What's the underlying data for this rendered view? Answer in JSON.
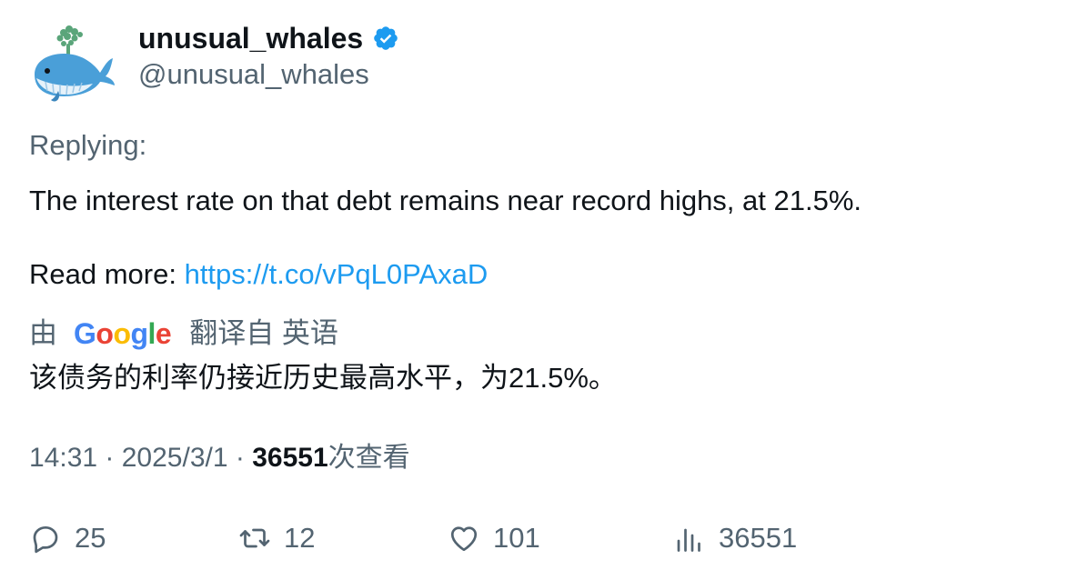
{
  "author": {
    "display_name": "unusual_whales",
    "handle": "@unusual_whales",
    "verified_icon": "verified-badge-icon",
    "avatar_icon": "whale-avatar-icon"
  },
  "tweet": {
    "replying_label": "Replying:",
    "text": "The interest rate on that debt remains near record highs, at 21.5%.",
    "read_more_label": "Read more: ",
    "link": "https://t.co/vPqL0PAxaD"
  },
  "translation": {
    "by_label": "由",
    "google_letters": [
      "G",
      "o",
      "o",
      "g",
      "l",
      "e"
    ],
    "google_colors": [
      "#4285F4",
      "#EA4335",
      "#FBBC05",
      "#4285F4",
      "#34A853",
      "#EA4335"
    ],
    "from_label": "翻译自 英语",
    "translated_text": "该债务的利率仍接近历史最高水平，为21.5%。"
  },
  "meta": {
    "time": "14:31",
    "separator": " · ",
    "date": "2025/3/1",
    "views_count": "36551",
    "views_label": "次查看"
  },
  "actions": {
    "replies": "25",
    "retweets": "12",
    "likes": "101",
    "views": "36551"
  },
  "colors": {
    "text_primary": "#0f1419",
    "text_secondary": "#536471",
    "link": "#1d9bf0",
    "verified": "#1d9bf0"
  }
}
